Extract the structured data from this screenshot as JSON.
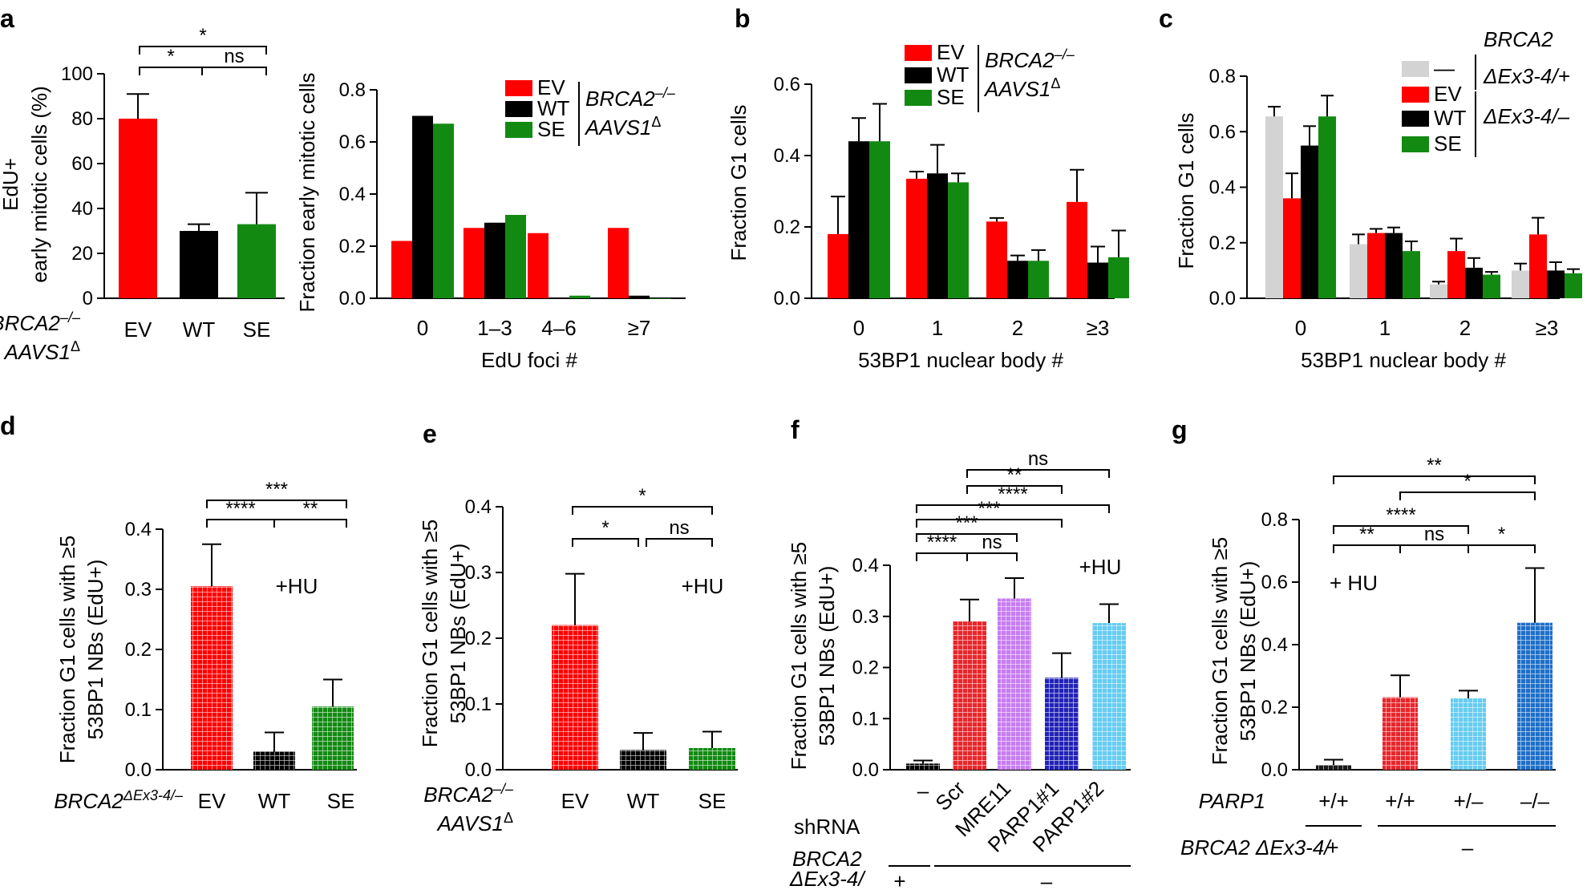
{
  "colors": {
    "EV": "#ff0000",
    "WT": "#000000",
    "SE": "#128a12",
    "ctrl": "#d3d3d3",
    "Scr": "#e8262b",
    "MRE11": "#c77cf0",
    "PARP1_1": "#2222b8",
    "PARP1_2": "#66ccf0",
    "g_pp": "#1a1a1a",
    "g_pp2": "#e8262b",
    "g_pm": "#66ccf0",
    "g_mm": "#1f6fc9"
  },
  "panels": {
    "a": "a",
    "b": "b",
    "c": "c",
    "d": "d",
    "e": "e",
    "f": "f",
    "g": "g"
  },
  "chart_data": [
    {
      "id": "a1",
      "type": "bar",
      "ylabel_line1": "EdU+",
      "ylabel_line2": "early mitotic cells (%)",
      "ylim": [
        0,
        100
      ],
      "yticks": [
        "0",
        "20",
        "40",
        "60",
        "80",
        "100"
      ],
      "categories": [
        "EV",
        "WT",
        "SE"
      ],
      "values": [
        80,
        30,
        33
      ],
      "errors": [
        11,
        3,
        14
      ],
      "genotype": {
        "line1": "BRCA2",
        "line1_sup": "–/–",
        "line2": "AAVS1",
        "line2_sup": "Δ"
      },
      "significance": [
        {
          "from": 0,
          "to": 1,
          "label": "*"
        },
        {
          "from": 1,
          "to": 2,
          "label": "ns"
        },
        {
          "from": 0,
          "to": 2,
          "label": "*"
        }
      ]
    },
    {
      "id": "a2",
      "type": "bar",
      "ylabel": "Fraction early mitotic cells",
      "xlabel": "EdU foci #",
      "ylim": [
        0,
        0.8
      ],
      "yticks": [
        "0.0",
        "0.2",
        "0.4",
        "0.6",
        "0.8"
      ],
      "categories": [
        "0",
        "1–3",
        "4–6",
        "≥7"
      ],
      "series": [
        {
          "name": "EV",
          "values": [
            0.22,
            0.27,
            0.25,
            0.27
          ]
        },
        {
          "name": "WT",
          "values": [
            0.7,
            0.29,
            0,
            0.01
          ]
        },
        {
          "name": "SE",
          "values": [
            0.67,
            0.32,
            0.01,
            0
          ]
        }
      ],
      "legend_genotype": {
        "line1": "BRCA2",
        "line1_sup": "–/–",
        "line2": "AAVS1",
        "line2_sup": "Δ"
      }
    },
    {
      "id": "b",
      "type": "bar",
      "ylabel": "Fraction G1 cells",
      "xlabel": "53BP1 nuclear body #",
      "ylim": [
        0,
        0.6
      ],
      "yticks": [
        "0.0",
        "0.2",
        "0.4",
        "0.6"
      ],
      "categories": [
        "0",
        "1",
        "2",
        "≥3"
      ],
      "series": [
        {
          "name": "EV",
          "values": [
            0.18,
            0.335,
            0.215,
            0.27
          ],
          "errors": [
            0.105,
            0.02,
            0.01,
            0.09
          ]
        },
        {
          "name": "WT",
          "values": [
            0.44,
            0.35,
            0.105,
            0.1
          ],
          "errors": [
            0.065,
            0.08,
            0.015,
            0.045
          ]
        },
        {
          "name": "SE",
          "values": [
            0.44,
            0.325,
            0.105,
            0.115
          ],
          "errors": [
            0.105,
            0.025,
            0.03,
            0.075
          ]
        }
      ],
      "legend_genotype": {
        "line1": "BRCA2",
        "line1_sup": "–/–",
        "line2": "AAVS1",
        "line2_sup": "Δ"
      }
    },
    {
      "id": "c",
      "type": "bar",
      "ylabel": "Fraction G1 cells",
      "xlabel": "53BP1 nuclear body #",
      "ylim": [
        0,
        0.8
      ],
      "yticks": [
        "0.0",
        "0.2",
        "0.4",
        "0.6",
        "0.8"
      ],
      "categories": [
        "0",
        "1",
        "2",
        "≥3"
      ],
      "series": [
        {
          "name": "—",
          "values": [
            0.655,
            0.195,
            0.05,
            0.1
          ],
          "errors": [
            0.035,
            0.035,
            0.01,
            0.025
          ]
        },
        {
          "name": "EV",
          "values": [
            0.36,
            0.235,
            0.17,
            0.23
          ],
          "errors": [
            0.09,
            0.015,
            0.045,
            0.06
          ]
        },
        {
          "name": "WT",
          "values": [
            0.55,
            0.235,
            0.11,
            0.1
          ],
          "errors": [
            0.07,
            0.02,
            0.035,
            0.03
          ]
        },
        {
          "name": "SE",
          "values": [
            0.655,
            0.17,
            0.085,
            0.09
          ],
          "errors": [
            0.075,
            0.035,
            0.01,
            0.015
          ]
        }
      ],
      "legend_genotype": {
        "top1": "BRCA2",
        "top2": "ΔEx3-4/+",
        "bottom": "ΔEx3-4/–"
      }
    },
    {
      "id": "d",
      "type": "bar",
      "ylabel_line1": "Fraction G1 cells with ≥5",
      "ylabel_line2": "53BP1 NBs (EdU+)",
      "ylim": [
        0,
        0.4
      ],
      "yticks": [
        "0.0",
        "0.1",
        "0.2",
        "0.3",
        "0.4"
      ],
      "categories": [
        "EV",
        "WT",
        "SE"
      ],
      "values": [
        0.305,
        0.03,
        0.105
      ],
      "errors": [
        0.07,
        0.032,
        0.045
      ],
      "annotation": "+HU",
      "genotype": {
        "line1": "BRCA2",
        "line1_sup": "ΔEx3-4/–"
      },
      "significance": [
        {
          "from": 0,
          "to": 1,
          "label": "****"
        },
        {
          "from": 1,
          "to": 2,
          "label": "**"
        },
        {
          "from": 0,
          "to": 2,
          "label": "***"
        }
      ]
    },
    {
      "id": "e",
      "type": "bar",
      "ylabel_line1": "Fraction G1 cells with ≥5",
      "ylabel_line2": "53BP1 NBs (EdU+)",
      "ylim": [
        0,
        0.4
      ],
      "yticks": [
        "0.0",
        "0.1",
        "0.2",
        "0.3",
        "0.4"
      ],
      "categories": [
        "EV",
        "WT",
        "SE"
      ],
      "values": [
        0.22,
        0.03,
        0.033
      ],
      "errors": [
        0.078,
        0.026,
        0.025
      ],
      "annotation": "+HU",
      "genotype": {
        "line1": "BRCA2",
        "line1_sup": "–/–",
        "line2": "AAVS1",
        "line2_sup": "Δ"
      },
      "significance": [
        {
          "from": 0,
          "to": 1,
          "label": "*"
        },
        {
          "from": 1,
          "to": 2,
          "label": "ns"
        },
        {
          "from": 0,
          "to": 2,
          "label": "*"
        }
      ]
    },
    {
      "id": "f",
      "type": "bar",
      "ylabel_line1": "Fraction G1 cells with ≥5",
      "ylabel_line2": "53BP1 NBs (EdU+)",
      "ylim": [
        0,
        0.4
      ],
      "yticks": [
        "0.0",
        "0.1",
        "0.2",
        "0.3",
        "0.4"
      ],
      "categories": [
        "–",
        "Scr",
        "MRE11",
        "PARP1#1",
        "PARP1#2"
      ],
      "values": [
        0.012,
        0.29,
        0.335,
        0.18,
        0.287
      ],
      "errors": [
        0.006,
        0.043,
        0.04,
        0.048,
        0.037
      ],
      "annotation": "+HU",
      "row_label": "shRNA",
      "genotype": {
        "line1": "BRCA2",
        "line2": "ΔEx3-4/",
        "plus": "+",
        "minus": "–"
      },
      "significance": [
        {
          "from": 0,
          "to": 1,
          "label": "****"
        },
        {
          "from": 1,
          "to": 2,
          "label": "ns"
        },
        {
          "from": 0,
          "to": 2,
          "label": "***"
        },
        {
          "from": 0,
          "to": 3,
          "label": "***"
        },
        {
          "from": 0,
          "to": 4,
          "label": "****"
        },
        {
          "from": 1,
          "to": 3,
          "label": "**"
        },
        {
          "from": 1,
          "to": 4,
          "label": "ns"
        }
      ]
    },
    {
      "id": "g",
      "type": "bar",
      "ylabel_line1": "Fraction G1 cells with ≥5",
      "ylabel_line2": "53BP1 NBs (EdU+)",
      "ylim": [
        0,
        0.8
      ],
      "yticks": [
        "0.0",
        "0.2",
        "0.4",
        "0.6",
        "0.8"
      ],
      "categories": [
        "+/+",
        "+/+",
        "+/–",
        "–/–"
      ],
      "values": [
        0.015,
        0.232,
        0.228,
        0.47
      ],
      "errors": [
        0.017,
        0.07,
        0.025,
        0.175
      ],
      "annotation": "+ HU",
      "row_label": "PARP1",
      "genotype": {
        "label": "BRCA2 ΔEx3-4/",
        "plus": "+",
        "minus": "–"
      },
      "significance": [
        {
          "from": 0,
          "to": 1,
          "label": "**"
        },
        {
          "from": 1,
          "to": 2,
          "label": "ns"
        },
        {
          "from": 2,
          "to": 3,
          "label": "*"
        },
        {
          "from": 0,
          "to": 2,
          "label": "****"
        },
        {
          "from": 1,
          "to": 3,
          "label": "*"
        },
        {
          "from": 0,
          "to": 3,
          "label": "**"
        }
      ]
    }
  ]
}
